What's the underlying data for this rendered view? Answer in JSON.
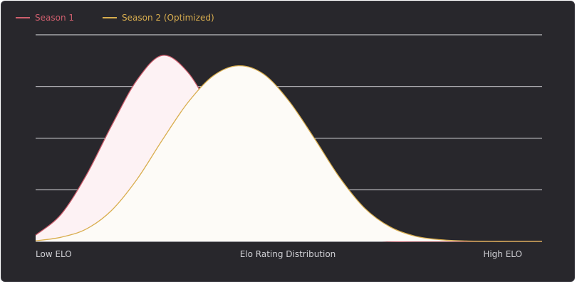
{
  "chart_data": {
    "type": "area",
    "title": "",
    "xlabel": "Elo Rating Distribution",
    "ylabel": "",
    "x_tick_labels": [
      "Low ELO",
      "Elo Rating Distribution",
      "High ELO"
    ],
    "grid": true,
    "legend_position": "top-left",
    "series": [
      {
        "name": "Season 1",
        "color": "#cf5f6e",
        "fill": "#fdf2f4",
        "x": [
          0,
          5,
          10,
          15,
          20,
          25,
          30,
          35,
          40,
          45,
          50,
          55,
          60,
          65,
          70,
          75,
          80,
          85,
          90,
          95,
          100
        ],
        "values": [
          0.03,
          0.13,
          0.32,
          0.56,
          0.78,
          0.9,
          0.82,
          0.62,
          0.41,
          0.24,
          0.12,
          0.05,
          0.02,
          0.01,
          0.0,
          0.0,
          0.0,
          0.0,
          0.0,
          0.0,
          0.0
        ]
      },
      {
        "name": "Season 2 (Optimized)",
        "color": "#d9ae4f",
        "fill": "#fdfbf7",
        "x": [
          0,
          5,
          10,
          15,
          20,
          25,
          30,
          35,
          40,
          45,
          50,
          55,
          60,
          65,
          70,
          75,
          80,
          85,
          90,
          95,
          100
        ],
        "values": [
          0.003,
          0.02,
          0.06,
          0.15,
          0.3,
          0.49,
          0.67,
          0.8,
          0.85,
          0.81,
          0.68,
          0.5,
          0.31,
          0.16,
          0.07,
          0.025,
          0.008,
          0.002,
          0.0,
          0.0,
          0.0
        ]
      }
    ]
  }
}
